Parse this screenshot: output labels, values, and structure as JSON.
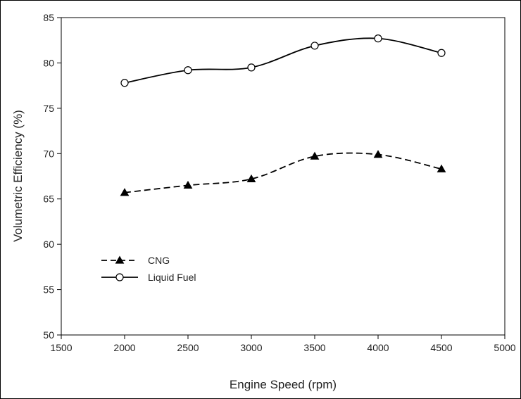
{
  "chart_data": {
    "type": "line",
    "title": "",
    "xlabel": "Engine Speed (rpm)",
    "ylabel": "Volumetric Efficiency (%)",
    "xlim": [
      1500,
      5000
    ],
    "ylim": [
      50,
      85
    ],
    "x_ticks": [
      1500,
      2000,
      2500,
      3000,
      3500,
      4000,
      4500,
      5000
    ],
    "y_ticks": [
      50,
      55,
      60,
      65,
      70,
      75,
      80,
      85
    ],
    "grid": false,
    "legend_position": "lower-left",
    "x": [
      2000,
      2500,
      3000,
      3500,
      4000,
      4500
    ],
    "series": [
      {
        "name": "CNG",
        "values": [
          65.7,
          66.5,
          67.2,
          69.7,
          69.9,
          68.3
        ],
        "line_style": "dashed",
        "marker": "filled-triangle",
        "color": "#000000"
      },
      {
        "name": "Liquid Fuel",
        "values": [
          77.8,
          79.2,
          79.5,
          81.9,
          82.7,
          81.1
        ],
        "line_style": "solid",
        "marker": "open-circle",
        "color": "#000000"
      }
    ]
  }
}
